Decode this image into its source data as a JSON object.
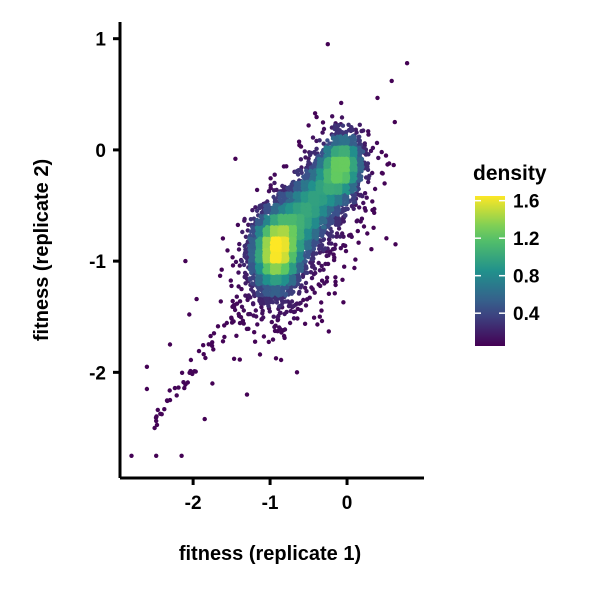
{
  "chart_data": {
    "type": "scatter",
    "title": "",
    "xlabel": "fitness (replicate 1)",
    "ylabel": "fitness (replicate 2)",
    "xlim": [
      -2.95,
      1.0
    ],
    "ylim": [
      -2.95,
      1.15
    ],
    "x_ticks": [
      -2,
      -1,
      0
    ],
    "y_ticks": [
      -2,
      -1,
      0,
      1
    ],
    "x_tick_labels": [
      "-2",
      "-1",
      "0"
    ],
    "y_tick_labels": [
      "-2",
      "-1",
      "0",
      "1"
    ],
    "grid": false,
    "color_by": "density",
    "legend": {
      "title": "density",
      "placement": "right",
      "range": [
        0.05,
        1.65
      ],
      "ticks": [
        0.4,
        0.8,
        1.2,
        1.6
      ],
      "tick_labels": [
        "0.4",
        "0.8",
        "1.2",
        "1.6"
      ],
      "palette": [
        "#440154",
        "#3b528b",
        "#21918c",
        "#5ec962",
        "#fde725"
      ]
    },
    "distribution": {
      "modes": [
        {
          "x": -0.95,
          "y": -0.92,
          "density": 1.6
        },
        {
          "x": -0.05,
          "y": -0.12,
          "density": 1.35
        }
      ],
      "correlation": "strong positive"
    },
    "outliers": [
      {
        "x": -0.25,
        "y": 0.95
      },
      {
        "x": 0.78,
        "y": 0.78
      },
      {
        "x": 0.58,
        "y": 0.62
      },
      {
        "x": -2.8,
        "y": -2.75
      },
      {
        "x": -2.48,
        "y": -2.75
      },
      {
        "x": -2.15,
        "y": -2.75
      },
      {
        "x": -2.6,
        "y": -2.15
      },
      {
        "x": -2.5,
        "y": -2.5
      },
      {
        "x": -2.3,
        "y": -2.25
      },
      {
        "x": -1.85,
        "y": -2.42
      },
      {
        "x": -1.3,
        "y": -2.2
      },
      {
        "x": -2.6,
        "y": -1.95
      },
      {
        "x": -2.3,
        "y": -1.75
      },
      {
        "x": -2.05,
        "y": -1.48
      },
      {
        "x": -2.1,
        "y": -1.0
      },
      {
        "x": -1.45,
        "y": -0.08
      },
      {
        "x": -0.5,
        "y": 0.22
      },
      {
        "x": 0.45,
        "y": -0.02
      },
      {
        "x": 0.62,
        "y": 0.25
      },
      {
        "x": -0.65,
        "y": -2.0
      },
      {
        "x": -1.75,
        "y": -2.1
      }
    ]
  }
}
